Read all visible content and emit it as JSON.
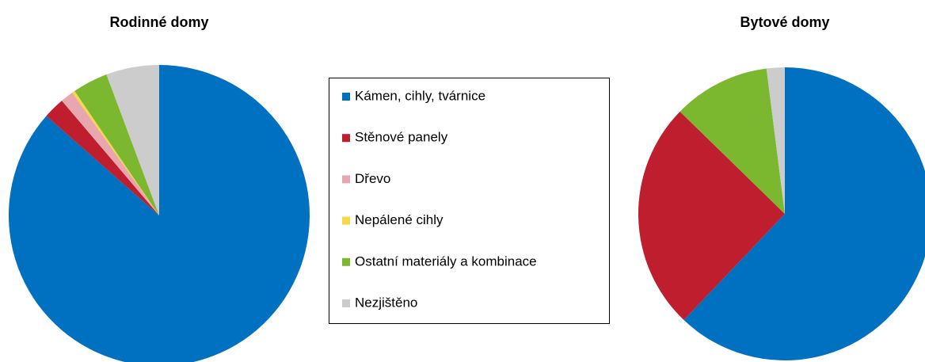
{
  "chart_data": [
    {
      "type": "pie",
      "title": "Rodinné domy",
      "categories": [
        "Kámen, cihly, tvárnice",
        "Stěnové panely",
        "Dřevo",
        "Nepálené cihly",
        "Ostatní materiály a kombinace",
        "Nezjištěno"
      ],
      "values": [
        86.5,
        2.3,
        1.4,
        0.3,
        3.8,
        5.7
      ],
      "colors": [
        "#0070c0",
        "#be1e2d",
        "#e8a6ae",
        "#f7d64a",
        "#7cb82f",
        "#cccccc"
      ]
    },
    {
      "type": "pie",
      "title": "Bytové domy",
      "categories": [
        "Kámen, cihly, tvárnice",
        "Stěnové panely",
        "Dřevo",
        "Nepálené cihly",
        "Ostatní materiály a kombinace",
        "Nezjištěno"
      ],
      "values": [
        62.1,
        25.2,
        0,
        0,
        10.7,
        2.0
      ],
      "colors": [
        "#0070c0",
        "#be1e2d",
        "#e8a6ae",
        "#f7d64a",
        "#7cb82f",
        "#cccccc"
      ]
    }
  ]
}
